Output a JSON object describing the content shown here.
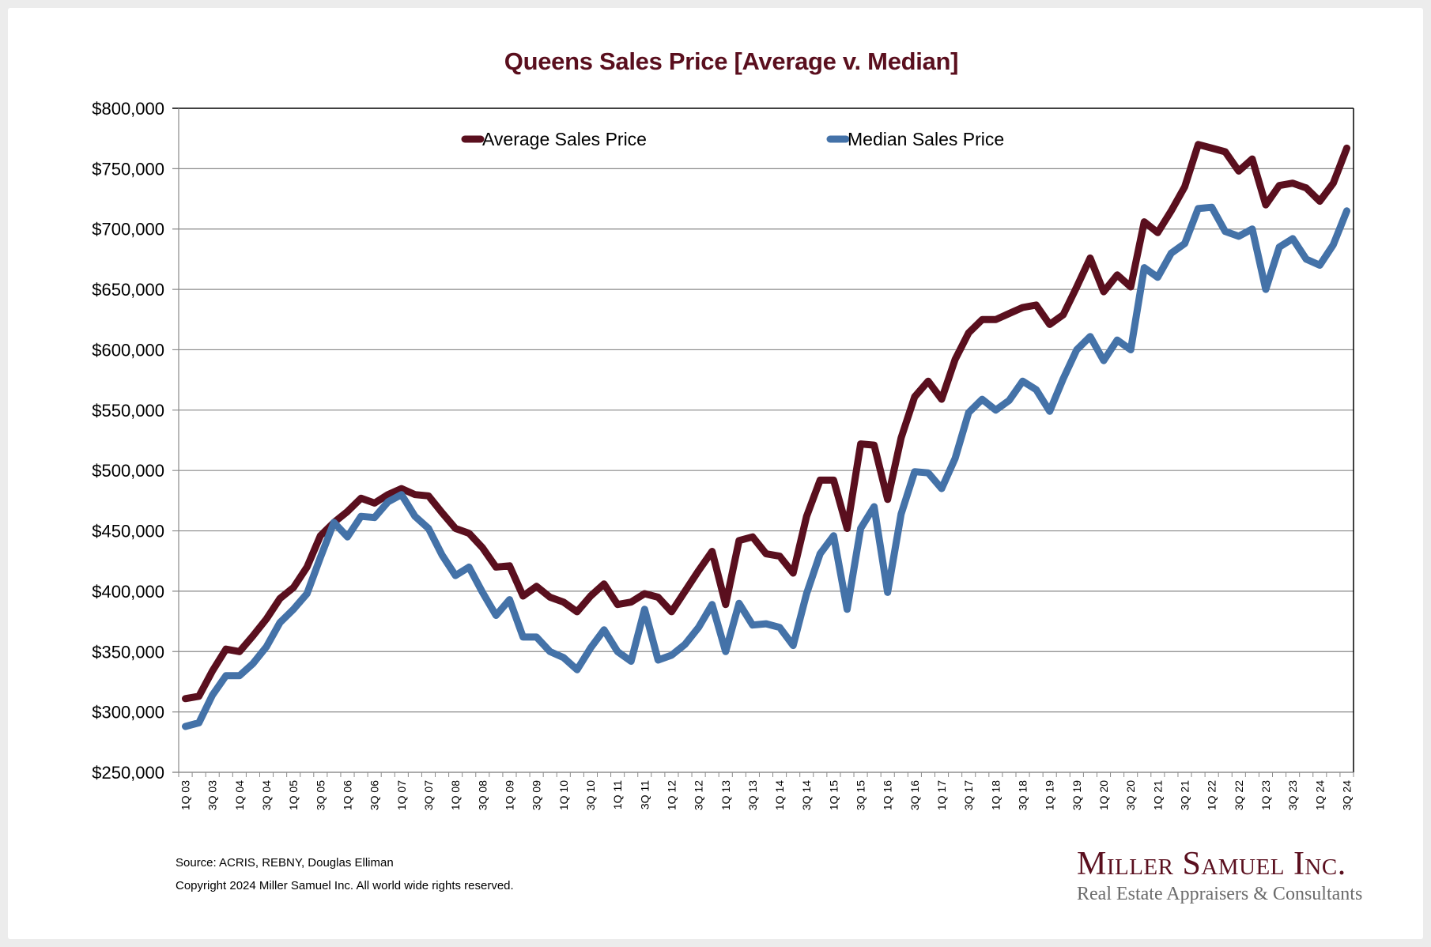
{
  "chart_data": {
    "type": "line",
    "title": "Queens Sales Price [Average v. Median]",
    "xlabel": "",
    "ylabel": "",
    "ylim": [
      250000,
      800000
    ],
    "y_ticks": [
      800000,
      750000,
      700000,
      650000,
      600000,
      550000,
      500000,
      450000,
      400000,
      350000,
      300000,
      250000
    ],
    "y_tick_labels": [
      "$800,000",
      "$750,000",
      "$700,000",
      "$650,000",
      "$600,000",
      "$550,000",
      "$500,000",
      "$450,000",
      "$400,000",
      "$350,000",
      "$300,000",
      "$250,000"
    ],
    "grid": "horizontal",
    "legend_position": "top-center",
    "x": [
      "1Q 03",
      "2Q 03",
      "3Q 03",
      "4Q 03",
      "1Q 04",
      "2Q 04",
      "3Q 04",
      "4Q 04",
      "1Q 05",
      "2Q 05",
      "3Q 05",
      "4Q 05",
      "1Q 06",
      "2Q 06",
      "3Q 06",
      "4Q 06",
      "1Q 07",
      "2Q 07",
      "3Q 07",
      "4Q 07",
      "1Q 08",
      "2Q 08",
      "3Q 08",
      "4Q 08",
      "1Q 09",
      "2Q 09",
      "3Q 09",
      "4Q 09",
      "1Q 10",
      "2Q 10",
      "3Q 10",
      "4Q 10",
      "1Q 11",
      "2Q 11",
      "3Q 11",
      "4Q 11",
      "1Q 12",
      "2Q 12",
      "3Q 12",
      "4Q 12",
      "1Q 13",
      "2Q 13",
      "3Q 13",
      "4Q 13",
      "1Q 14",
      "2Q 14",
      "3Q 14",
      "4Q 14",
      "1Q 15",
      "2Q 15",
      "3Q 15",
      "4Q 15",
      "1Q 16",
      "2Q 16",
      "3Q 16",
      "4Q 16",
      "1Q 17",
      "2Q 17",
      "3Q 17",
      "4Q 17",
      "1Q 18",
      "2Q 18",
      "3Q 18",
      "4Q 18",
      "1Q 19",
      "2Q 19",
      "3Q 19",
      "4Q 19",
      "1Q 20",
      "2Q 20",
      "3Q 20",
      "4Q 20",
      "1Q 21",
      "2Q 21",
      "3Q 21",
      "4Q 21",
      "1Q 22",
      "2Q 22",
      "3Q 22",
      "4Q 22",
      "1Q 23",
      "2Q 23",
      "3Q 23",
      "4Q 23",
      "1Q 24",
      "2Q 24",
      "3Q 24"
    ],
    "x_tick_labels": [
      "1Q 03",
      "3Q 03",
      "1Q 04",
      "3Q 04",
      "1Q 05",
      "3Q 05",
      "1Q 06",
      "3Q 06",
      "1Q 07",
      "3Q 07",
      "1Q 08",
      "3Q 08",
      "1Q 09",
      "3Q 09",
      "1Q 10",
      "3Q 10",
      "1Q 11",
      "3Q 11",
      "1Q 12",
      "3Q 12",
      "1Q 13",
      "3Q 13",
      "1Q 14",
      "3Q 14",
      "1Q 15",
      "3Q 15",
      "1Q 16",
      "3Q 16",
      "1Q 17",
      "3Q 17",
      "1Q 18",
      "3Q 18",
      "1Q 19",
      "3Q 19",
      "1Q 20",
      "3Q 20",
      "1Q 21",
      "3Q 21",
      "1Q 22",
      "3Q 22",
      "1Q 23",
      "3Q 23",
      "1Q 24",
      "3Q 24"
    ],
    "series": [
      {
        "name": "Average Sales Price",
        "color": "#5a0f1e",
        "values": [
          311000,
          313000,
          334000,
          352000,
          350000,
          363000,
          377000,
          394000,
          403000,
          420000,
          446000,
          457000,
          466000,
          477000,
          473000,
          480000,
          485000,
          480000,
          479000,
          465000,
          452000,
          448000,
          436000,
          420000,
          421000,
          396000,
          404000,
          395000,
          391000,
          383000,
          396000,
          406000,
          389000,
          391000,
          398000,
          395000,
          383000,
          400000,
          417000,
          433000,
          389000,
          442000,
          445000,
          431000,
          429000,
          415000,
          462000,
          492000,
          492000,
          452000,
          522000,
          521000,
          476000,
          527000,
          561000,
          574000,
          559000,
          592000,
          614000,
          625000,
          625000,
          630000,
          635000,
          637000,
          621000,
          629000,
          652000,
          676000,
          648000,
          662000,
          652000,
          706000,
          697000,
          715000,
          735000,
          770000,
          767000,
          764000,
          748000,
          758000,
          720000,
          736000,
          738000,
          734000,
          723000,
          738000,
          767000
        ]
      },
      {
        "name": "Median Sales Price",
        "color": "#4472a8",
        "values": [
          288000,
          291000,
          314000,
          330000,
          330000,
          340000,
          354000,
          374000,
          385000,
          398000,
          428000,
          457000,
          445000,
          462000,
          461000,
          474000,
          480000,
          462000,
          452000,
          430000,
          413000,
          420000,
          399000,
          380000,
          393000,
          362000,
          362000,
          350000,
          345000,
          335000,
          353000,
          368000,
          350000,
          342000,
          385000,
          343000,
          347000,
          356000,
          370000,
          389000,
          350000,
          390000,
          372000,
          373000,
          370000,
          355000,
          398000,
          431000,
          446000,
          385000,
          452000,
          470000,
          399000,
          464000,
          499000,
          498000,
          485000,
          510000,
          548000,
          559000,
          550000,
          558000,
          574000,
          567000,
          549000,
          576000,
          600000,
          611000,
          591000,
          608000,
          600000,
          668000,
          660000,
          680000,
          688000,
          717000,
          718000,
          698000,
          694000,
          700000,
          650000,
          685000,
          692000,
          675000,
          670000,
          687000,
          715000
        ]
      }
    ]
  },
  "footer": {
    "source": "Source: ACRIS, REBNY, Douglas Elliman",
    "copyright": "Copyright 2024 Miller Samuel Inc.  All world wide rights reserved."
  },
  "logo": {
    "name": "Miller Samuel Inc.",
    "tagline": "Real Estate Appraisers & Consultants"
  }
}
